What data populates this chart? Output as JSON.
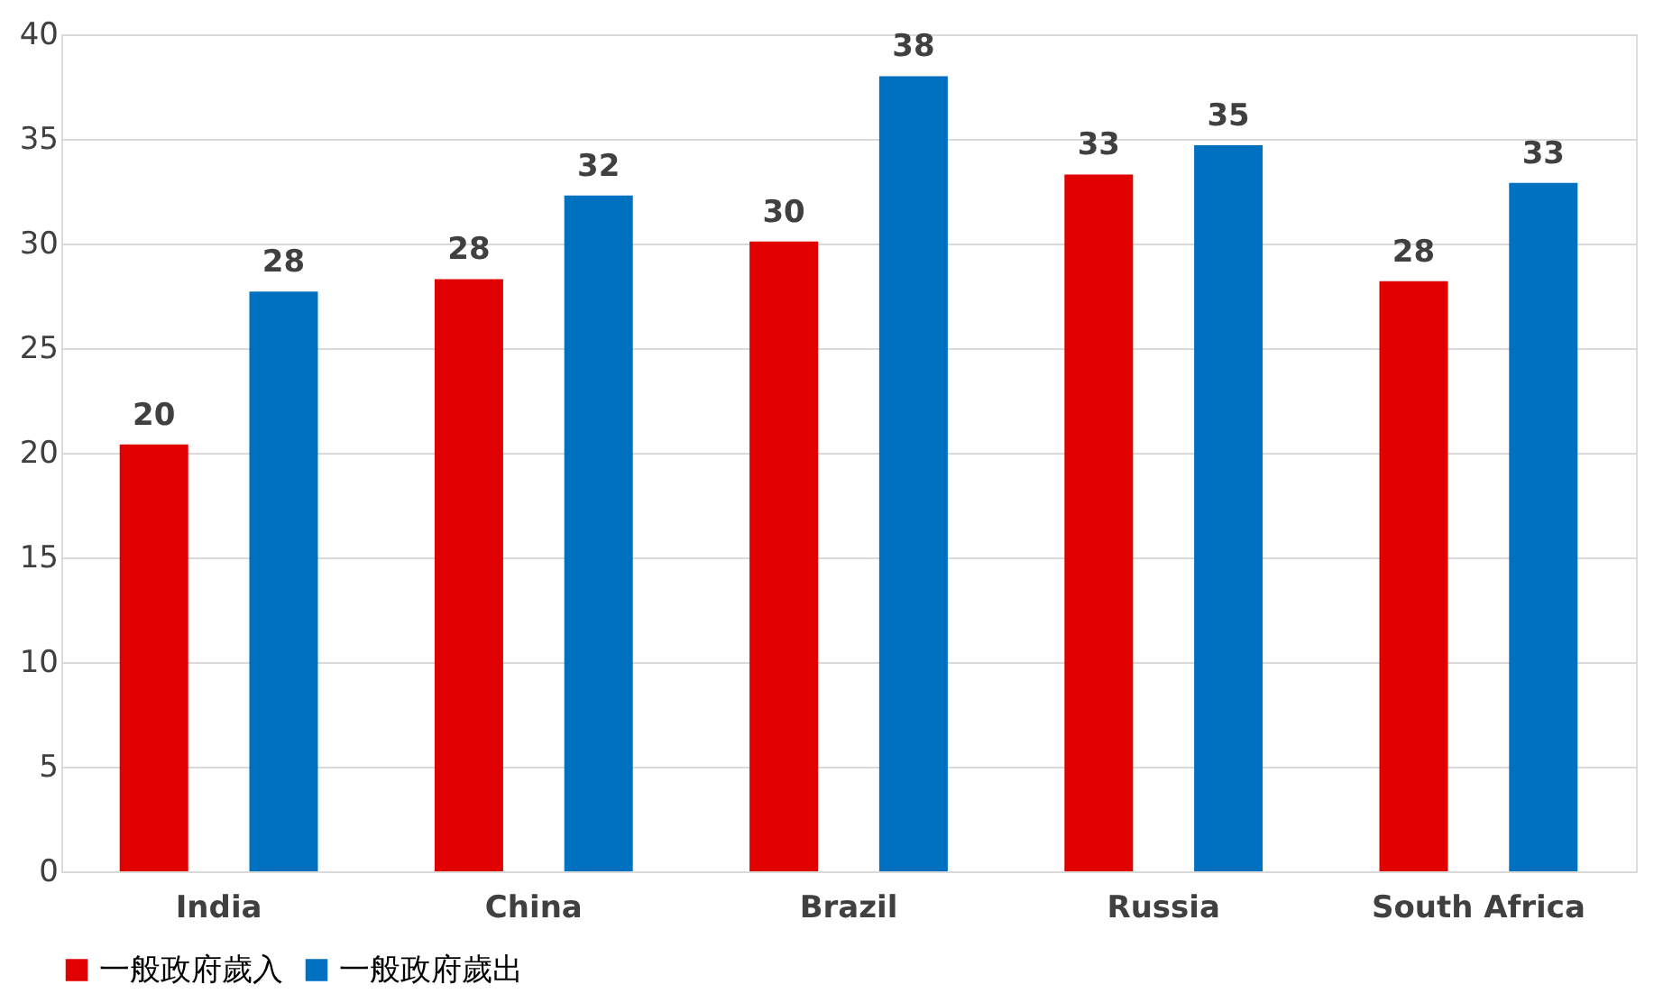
{
  "chart_data": {
    "type": "bar",
    "categories": [
      "India",
      "China",
      "Brazil",
      "Russia",
      "South Africa"
    ],
    "series": [
      {
        "name": "一般政府歲入",
        "color": "#e00000",
        "values": [
          20.4,
          28.3,
          30.1,
          33.3,
          28.2
        ],
        "value_labels": [
          "20",
          "28",
          "30",
          "33",
          "28"
        ]
      },
      {
        "name": "一般政府歲出",
        "color": "#0070c0",
        "values": [
          27.7,
          32.3,
          38.0,
          34.7,
          32.9
        ],
        "value_labels": [
          "28",
          "32",
          "38",
          "35",
          "33"
        ]
      }
    ],
    "ylim": [
      0,
      40
    ],
    "yticks": [
      0,
      5,
      10,
      15,
      20,
      25,
      30,
      35,
      40
    ],
    "grid": "y",
    "legend": "bottom"
  }
}
